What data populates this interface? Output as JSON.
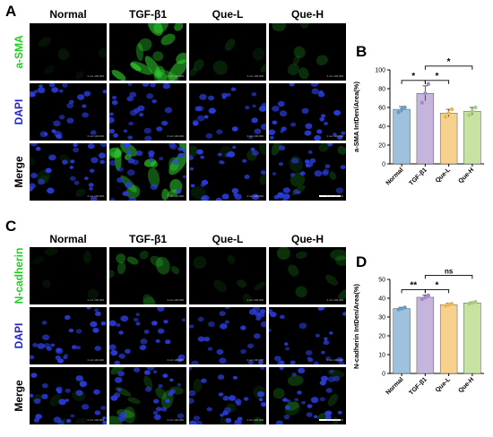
{
  "panels": {
    "A": "A",
    "B": "B",
    "C": "C",
    "D": "D"
  },
  "groups": [
    "Normal",
    "TGF-β1",
    "Que-L",
    "Que-H"
  ],
  "rows_A": [
    {
      "label": "a-SMA",
      "color": "#1fcf1f"
    },
    {
      "label": "DAPI",
      "color": "#2222cc"
    },
    {
      "label": "Merge",
      "color": "#000000"
    }
  ],
  "rows_C": [
    {
      "label": "N-cadherin",
      "color": "#1fcf1f"
    },
    {
      "label": "DAPI",
      "color": "#2222cc"
    },
    {
      "label": "Merge",
      "color": "#000000"
    }
  ],
  "tile_scale_text": "0 um 100,000",
  "chart_data": [
    {
      "type": "bar",
      "panel": "B",
      "categories": [
        "Normal",
        "TGF-β1",
        "Que-L",
        "Que-H"
      ],
      "values": [
        58,
        75,
        54,
        56
      ],
      "errors": [
        3,
        8,
        4,
        4
      ],
      "points": [
        [
          55,
          58,
          60
        ],
        [
          65,
          75,
          85
        ],
        [
          50,
          54,
          58
        ],
        [
          52,
          56,
          60
        ]
      ],
      "colors": [
        "#9ec2de",
        "#c5b4dc",
        "#f6d28c",
        "#c7e3a2"
      ],
      "point_colors": [
        "#6a9bc4",
        "#a58ac8",
        "#e9b655",
        "#a5cf77"
      ],
      "ylabel": "a-SMA IntDen/Area(%)",
      "ylim": [
        0,
        100
      ],
      "yticks": [
        0,
        20,
        40,
        60,
        80,
        100
      ],
      "significance": [
        {
          "from": 0,
          "to": 1,
          "label": "*"
        },
        {
          "from": 1,
          "to": 2,
          "label": "*"
        },
        {
          "from": 1,
          "to": 3,
          "label": "*"
        }
      ]
    },
    {
      "type": "bar",
      "panel": "D",
      "categories": [
        "Normal",
        "TGF-β1",
        "Que-L",
        "Que-H"
      ],
      "values": [
        34.5,
        40.5,
        36.5,
        37.5
      ],
      "errors": [
        0.7,
        1.2,
        0.8,
        0.5
      ],
      "points": [
        [
          34,
          34.5,
          35
        ],
        [
          39.5,
          40.5,
          41.5
        ],
        [
          36,
          36.5,
          37
        ],
        [
          37,
          37.5,
          38
        ]
      ],
      "colors": [
        "#9ec2de",
        "#c5b4dc",
        "#f6d28c",
        "#c7e3a2"
      ],
      "point_colors": [
        "#6a9bc4",
        "#a58ac8",
        "#e9b655",
        "#a5cf77"
      ],
      "ylabel": "N-cadherin IntDen/Area(%)",
      "ylim": [
        0,
        50
      ],
      "yticks": [
        0,
        10,
        20,
        30,
        40,
        50
      ],
      "significance": [
        {
          "from": 0,
          "to": 1,
          "label": "**"
        },
        {
          "from": 1,
          "to": 2,
          "label": "*"
        },
        {
          "from": 1,
          "to": 3,
          "label": "ns"
        }
      ]
    }
  ]
}
